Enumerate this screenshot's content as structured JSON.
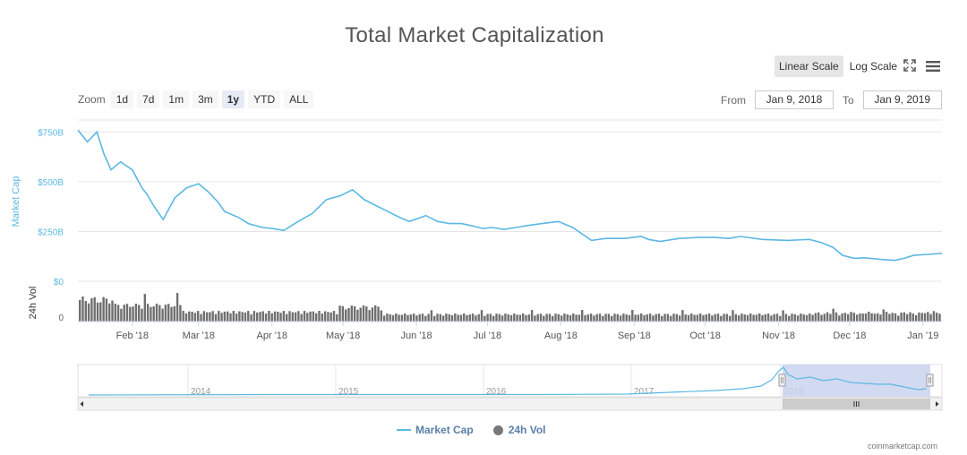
{
  "header": {
    "title": "Total Market Capitalization"
  },
  "scale": {
    "linear": "Linear Scale",
    "log": "Log Scale",
    "active": "linear"
  },
  "icons": {
    "fullscreen": "fullscreen-icon",
    "menu": "hamburger-menu-icon"
  },
  "zoom": {
    "label": "Zoom",
    "buttons": [
      "1d",
      "7d",
      "1m",
      "3m",
      "1y",
      "YTD",
      "ALL"
    ],
    "active": "1y"
  },
  "range": {
    "from_label": "From",
    "from_value": "Jan 9, 2018",
    "to_label": "To",
    "to_value": "Jan 9, 2019"
  },
  "colors": {
    "market_cap": "#5cb8e4",
    "volume": "#6f6f6f",
    "navigator_mask": "#c9d3ef"
  },
  "chart_data": {
    "type": "line",
    "title": "Total Market Capitalization",
    "x_range": [
      "2018-01-09",
      "2019-01-09"
    ],
    "x_tick_labels": [
      "Feb '18",
      "Mar '18",
      "Apr '18",
      "May '18",
      "Jun '18",
      "Jul '18",
      "Aug '18",
      "Sep '18",
      "Oct '18",
      "Nov '18",
      "Dec '18",
      "Jan '19"
    ],
    "x_tick_dates": [
      "2018-02-01",
      "2018-03-01",
      "2018-04-01",
      "2018-05-01",
      "2018-06-01",
      "2018-07-01",
      "2018-08-01",
      "2018-09-01",
      "2018-10-01",
      "2018-11-01",
      "2018-12-01",
      "2019-01-01"
    ],
    "y_axis": {
      "label": "Market Cap",
      "ylim": [
        0,
        810
      ],
      "unit": "B",
      "ticks": [
        "$0",
        "$250B",
        "$500B",
        "$750B"
      ],
      "tick_values": [
        0,
        250,
        500,
        750
      ]
    },
    "volume_axis": {
      "label": "24h Vol",
      "ticks": [
        "0"
      ],
      "tick_values": [
        0
      ]
    },
    "grid": true,
    "series": [
      {
        "name": "Market Cap",
        "x": [
          "2018-01-09",
          "2018-01-13",
          "2018-01-17",
          "2018-01-20",
          "2018-01-23",
          "2018-01-27",
          "2018-02-01",
          "2018-02-05",
          "2018-02-07",
          "2018-02-10",
          "2018-02-14",
          "2018-02-19",
          "2018-02-24",
          "2018-03-01",
          "2018-03-05",
          "2018-03-09",
          "2018-03-12",
          "2018-03-18",
          "2018-03-22",
          "2018-03-28",
          "2018-04-01",
          "2018-04-06",
          "2018-04-12",
          "2018-04-18",
          "2018-04-24",
          "2018-04-30",
          "2018-05-05",
          "2018-05-10",
          "2018-05-15",
          "2018-05-20",
          "2018-05-25",
          "2018-05-29",
          "2018-06-05",
          "2018-06-10",
          "2018-06-15",
          "2018-06-20",
          "2018-06-24",
          "2018-06-29",
          "2018-07-03",
          "2018-07-08",
          "2018-07-13",
          "2018-07-18",
          "2018-07-24",
          "2018-07-31",
          "2018-08-06",
          "2018-08-11",
          "2018-08-14",
          "2018-08-20",
          "2018-08-28",
          "2018-09-04",
          "2018-09-07",
          "2018-09-12",
          "2018-09-20",
          "2018-09-28",
          "2018-10-05",
          "2018-10-11",
          "2018-10-16",
          "2018-10-25",
          "2018-11-05",
          "2018-11-14",
          "2018-11-19",
          "2018-11-24",
          "2018-11-28",
          "2018-12-03",
          "2018-12-07",
          "2018-12-14",
          "2018-12-20",
          "2018-12-24",
          "2018-12-28",
          "2019-01-03",
          "2019-01-09"
        ],
        "values": [
          760,
          700,
          750,
          640,
          560,
          600,
          560,
          470,
          440,
          380,
          310,
          420,
          470,
          490,
          450,
          400,
          350,
          320,
          290,
          270,
          265,
          255,
          300,
          340,
          410,
          430,
          460,
          410,
          380,
          350,
          320,
          300,
          330,
          300,
          290,
          290,
          280,
          265,
          270,
          260,
          270,
          280,
          290,
          300,
          270,
          230,
          205,
          215,
          215,
          225,
          210,
          200,
          215,
          220,
          220,
          215,
          225,
          210,
          205,
          210,
          195,
          170,
          130,
          115,
          118,
          110,
          105,
          115,
          130,
          135,
          140
        ]
      }
    ],
    "volume_bars_shown": true,
    "navigator": {
      "year_labels": [
        "2014",
        "2015",
        "2016",
        "2017",
        "2018"
      ],
      "selected_range": [
        "2018-01-09",
        "2019-01-09"
      ]
    },
    "legend": {
      "entries": [
        "Market Cap",
        "24h Vol"
      ],
      "placement": "bottom-center"
    }
  },
  "credit": "coinmarketcap.com"
}
